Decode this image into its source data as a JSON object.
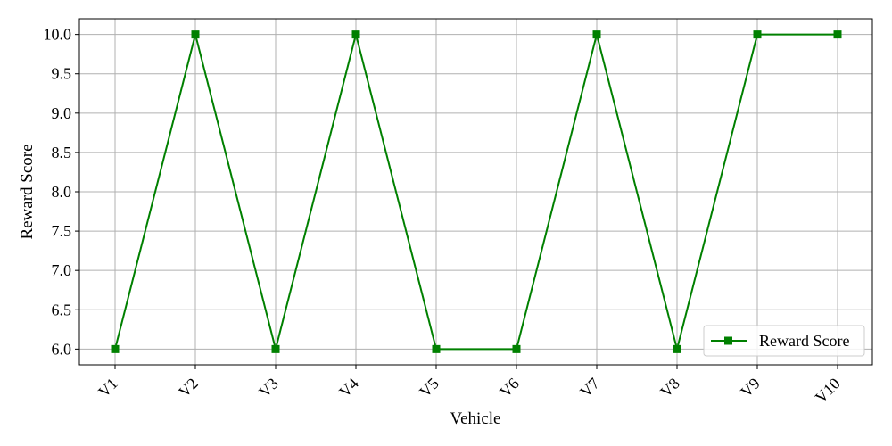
{
  "chart_data": {
    "type": "line",
    "categories": [
      "V1",
      "V2",
      "V3",
      "V4",
      "V5",
      "V6",
      "V7",
      "V8",
      "V9",
      "V10"
    ],
    "series": [
      {
        "name": "Reward Score",
        "values": [
          6.0,
          10.0,
          6.0,
          10.0,
          6.0,
          6.0,
          10.0,
          6.0,
          10.0,
          10.0
        ],
        "color": "#008000",
        "marker": "square"
      }
    ],
    "xlabel": "Vehicle",
    "ylabel": "Reward Score",
    "ylim": [
      5.8,
      10.2
    ],
    "yticks": [
      "6.0",
      "6.5",
      "7.0",
      "7.5",
      "8.0",
      "8.5",
      "9.0",
      "9.5",
      "10.0"
    ],
    "grid": true,
    "legend_position": "bottom-right",
    "xtick_rotation": "45 degrees"
  }
}
